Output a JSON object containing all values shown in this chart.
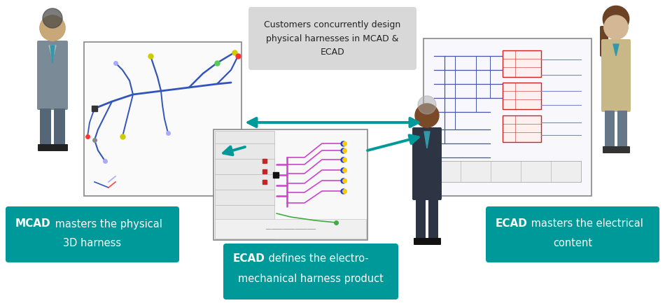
{
  "bg_color": "#ffffff",
  "teal_color": "#009999",
  "gray_box_color": "#d8d8d8",
  "arrow_color": "#009999",
  "top_box_text": "Customers concurrently design\nphysical harnesses in MCAD &\nECAD",
  "left_bold": "MCAD",
  "left_rest": " masters the physical\n3D harness",
  "right_bold": "ECAD",
  "right_rest": " masters the electrical\ncontent",
  "bottom_bold": "ECAD",
  "bottom_rest": " defines the electro-\nmechanical harness product",
  "fig_w": 9.5,
  "fig_h": 4.33,
  "dpi": 100
}
